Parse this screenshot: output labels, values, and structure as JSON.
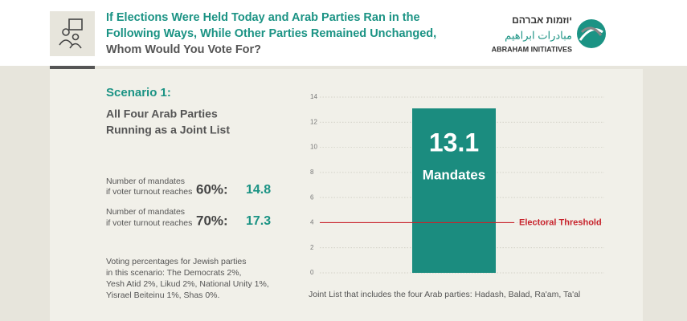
{
  "header": {
    "title_lines": [
      "If Elections Were Held Today and Arab Parties Ran in the",
      "Following Ways, While Other Parties Remained Unchanged,",
      "Whom Would You Vote For?"
    ],
    "logo": {
      "hebrew": "יוזמות אברהם",
      "arabic": "مبادرات ابراهيم",
      "english": "ABRAHAM INITIATIVES"
    }
  },
  "scenario": {
    "heading": "Scenario 1:",
    "description_lines": [
      "All Four Arab Parties",
      "Running as a Joint List"
    ],
    "turnouts": [
      {
        "caption_lines": [
          "Number of mandates",
          "if voter turnout reaches"
        ],
        "turnout": "60%:",
        "mandates": 14.8
      },
      {
        "caption_lines": [
          "Number of mandates",
          "if voter turnout reaches"
        ],
        "turnout": "70%:",
        "mandates": 17.3
      }
    ],
    "note_lines": [
      "Voting percentages for Jewish parties",
      "in this scenario: The Democrats 2%,",
      "Yesh Atid 2%, Likud 2%, National Unity 1%,",
      "Yisrael Beiteinu 1%, Shas 0%."
    ]
  },
  "chart_data": {
    "type": "bar",
    "categories": [
      "Joint List that includes the four Arab parties: Hadash, Balad, Ra'am, Ta'al"
    ],
    "values": [
      13.1
    ],
    "value_unit": "Mandates",
    "color": "#1b8c7f",
    "ylim": [
      0,
      14
    ],
    "yticks": [
      0,
      2,
      4,
      6,
      8,
      10,
      12,
      14
    ],
    "grid": true,
    "threshold": {
      "value": 4,
      "label": "Electoral Threshold",
      "color": "#c8232c"
    }
  }
}
